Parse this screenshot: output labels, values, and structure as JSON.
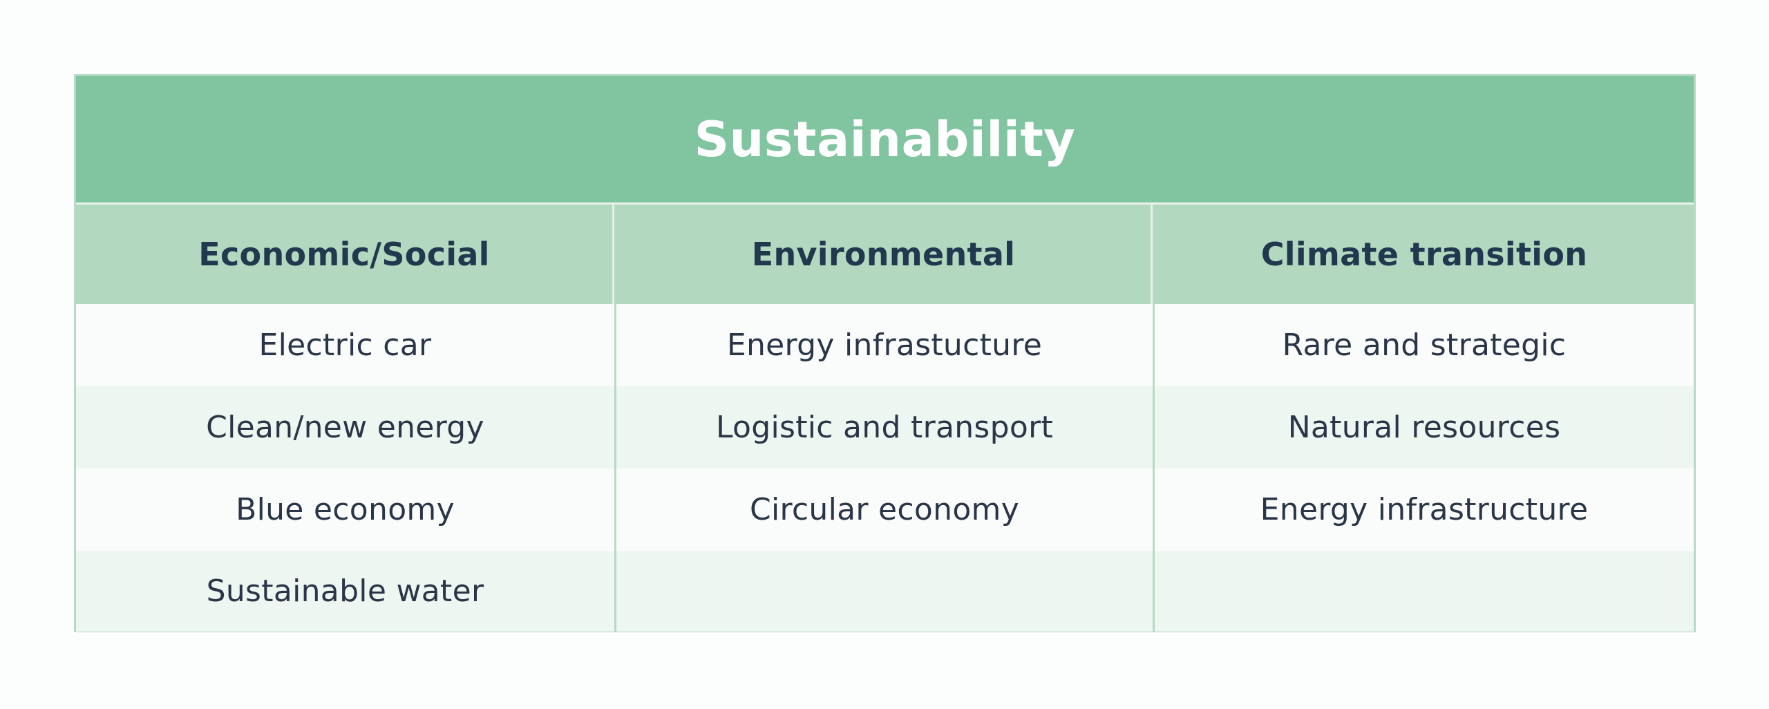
{
  "table": {
    "title": "Sustainability",
    "columns": [
      {
        "header": "Economic/Social",
        "cells": [
          "Electric car",
          "Clean/new energy",
          "Blue economy",
          "Sustainable water"
        ]
      },
      {
        "header": "Environmental",
        "cells": [
          "Energy infrastucture",
          "Logistic and transport",
          "Circular economy",
          ""
        ]
      },
      {
        "header": "Climate transition",
        "cells": [
          "Rare and strategic",
          "Natural resources",
          "Energy infrastructure",
          ""
        ]
      }
    ]
  },
  "colors": {
    "title_bg": "#80c4a0",
    "header_bg": "#b2d9c0",
    "row_alt_bg": "#eef6f1",
    "text": "#2a3547",
    "header_text": "#22384e"
  }
}
